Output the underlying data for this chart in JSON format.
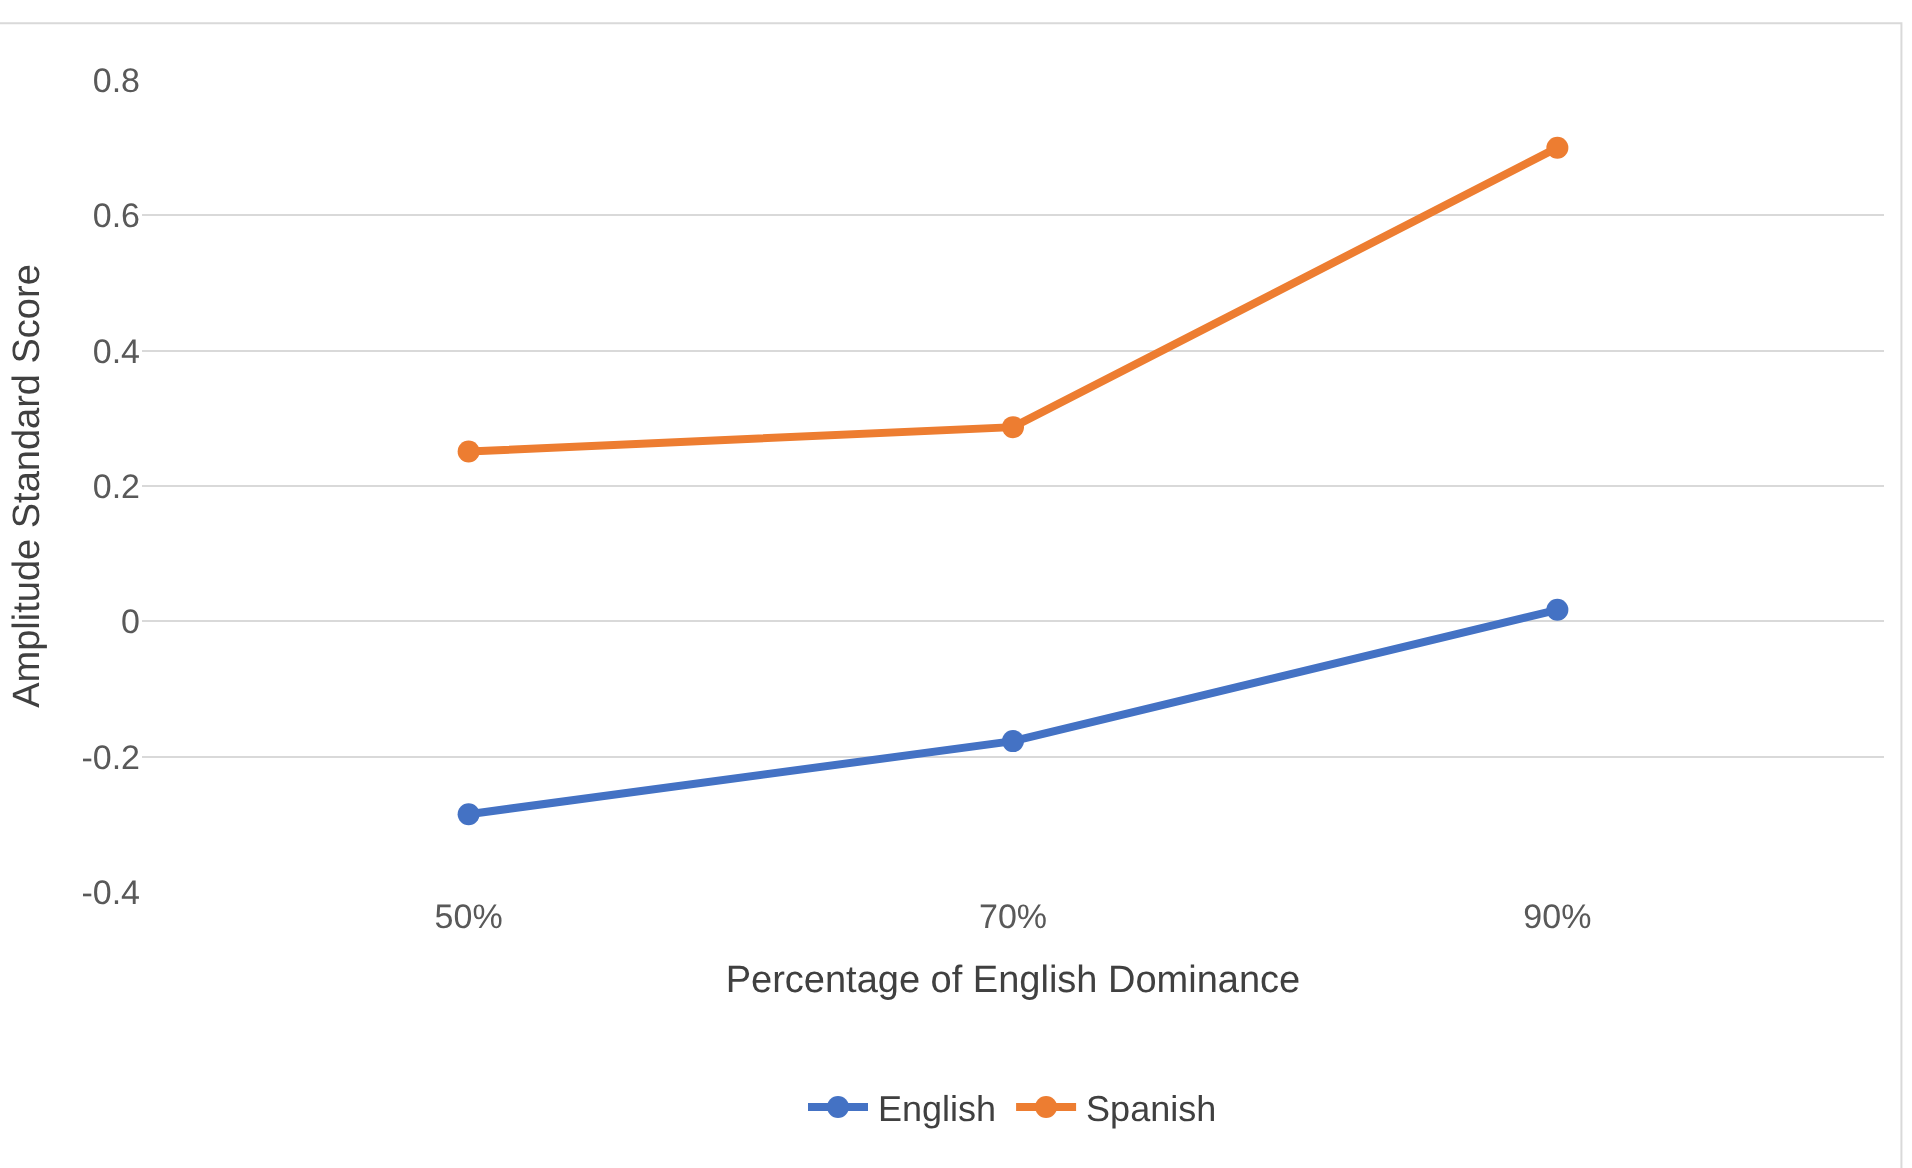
{
  "chart_data": {
    "type": "line",
    "xlabel": "Percentage of English Dominance",
    "ylabel": "Amplitude Standard Score",
    "categories": [
      "50%",
      "70%",
      "90%"
    ],
    "series": [
      {
        "name": "English",
        "color": "#4472c4",
        "values": [
          -0.285,
          -0.177,
          0.017
        ]
      },
      {
        "name": "Spanish",
        "color": "#ed7d31",
        "values": [
          0.251,
          0.287,
          0.7
        ]
      }
    ],
    "ylim": [
      -0.4,
      0.8
    ],
    "yticks": [
      -0.4,
      -0.2,
      0,
      0.2,
      0.4,
      0.6,
      0.8
    ],
    "grid": "y",
    "legend": "bottom",
    "marker": "circle",
    "line_style": "solid"
  }
}
